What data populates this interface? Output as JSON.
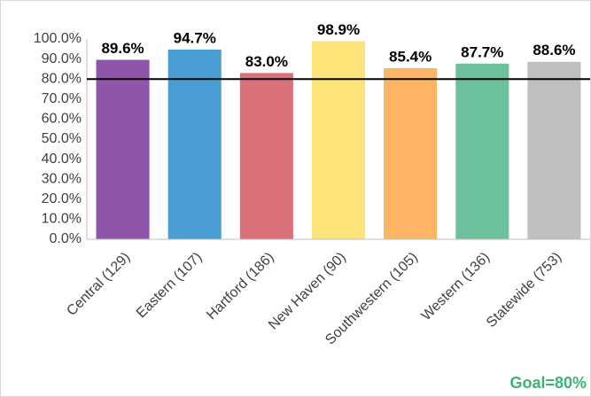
{
  "chart_data": {
    "type": "bar",
    "categories": [
      "Central (129)",
      "Eastern (107)",
      "Hartford (186)",
      "New Haven (90)",
      "Southwestern (105)",
      "Western (136)",
      "Statewide (753)"
    ],
    "values": [
      89.6,
      94.7,
      83.0,
      98.9,
      85.4,
      87.7,
      88.6
    ],
    "value_labels": [
      "89.6%",
      "94.7%",
      "83.0%",
      "98.9%",
      "85.4%",
      "87.7%",
      "88.6%"
    ],
    "colors": [
      "#8e55a8",
      "#4a9ed4",
      "#d9707a",
      "#fce47a",
      "#fdb465",
      "#6cc19c",
      "#bfbfbf"
    ],
    "ylim": [
      0,
      100
    ],
    "yticks": [
      {
        "value": 0,
        "label": "0.0%"
      },
      {
        "value": 10,
        "label": "10.0%"
      },
      {
        "value": 20,
        "label": "20.0%"
      },
      {
        "value": 30,
        "label": "30.0%"
      },
      {
        "value": 40,
        "label": "40.0%"
      },
      {
        "value": 50,
        "label": "50.0%"
      },
      {
        "value": 60,
        "label": "60.0%"
      },
      {
        "value": 70,
        "label": "70.0%"
      },
      {
        "value": 80,
        "label": "80.0%"
      },
      {
        "value": 90,
        "label": "90.0%"
      },
      {
        "value": 100,
        "label": "100.0%"
      }
    ],
    "goal": 80,
    "annotation": "Goal=80%"
  }
}
